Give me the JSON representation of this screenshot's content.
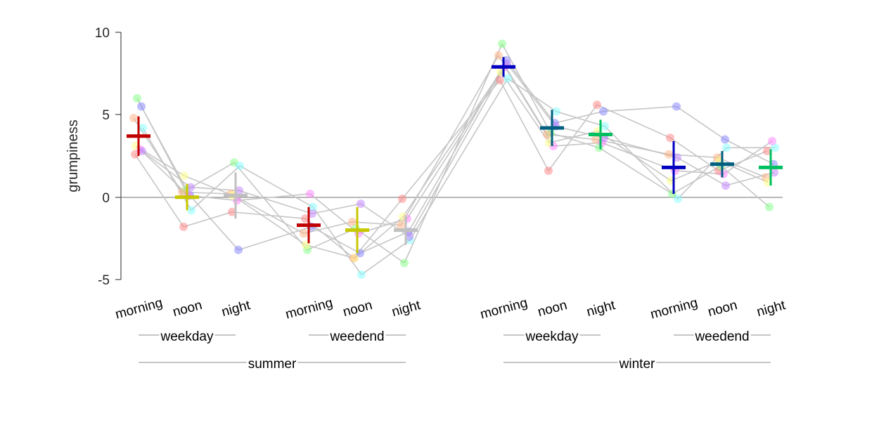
{
  "chart_data": {
    "type": "scatter",
    "ylabel": "grumpiness",
    "ylim": [
      -5,
      10
    ],
    "yticks": [
      -5,
      0,
      5,
      10
    ],
    "zero_line": true,
    "categories": [
      "morning",
      "noon",
      "night",
      "morning",
      "noon",
      "night",
      "morning",
      "noon",
      "night",
      "morning",
      "noon",
      "night"
    ],
    "groups": [
      {
        "label": "weekday",
        "span": [
          0,
          2
        ]
      },
      {
        "label": "weedend",
        "span": [
          3,
          5
        ]
      },
      {
        "label": "weekday",
        "span": [
          6,
          8
        ]
      },
      {
        "label": "weedend",
        "span": [
          9,
          11
        ]
      }
    ],
    "supergroups": [
      {
        "label": "summer",
        "span": [
          0,
          5
        ]
      },
      {
        "label": "winter",
        "span": [
          6,
          11
        ]
      }
    ],
    "category_colors": [
      "#c00000",
      "#c8c800",
      "#c0c0c0",
      "#c00000",
      "#c8c800",
      "#c0c0c0",
      "#0000c0",
      "#005f80",
      "#00c060",
      "#0000c0",
      "#005f80",
      "#00c060"
    ],
    "means": [
      3.7,
      0.0,
      0.1,
      -1.7,
      -2.0,
      -2.0,
      7.9,
      4.2,
      3.8,
      1.8,
      2.0,
      1.8
    ],
    "errors": [
      1.2,
      0.8,
      1.4,
      1.1,
      1.4,
      0.9,
      0.6,
      1.1,
      0.9,
      1.6,
      0.8,
      1.1
    ],
    "subjects": [
      {
        "color": "#ff8080",
        "values": [
          2.6,
          -1.8,
          -0.9,
          -1.3,
          -3.7,
          -0.1,
          7.1,
          1.6,
          5.6,
          3.6,
          1.6,
          2.8
        ]
      },
      {
        "color": "#8080ff",
        "values": [
          5.5,
          0.1,
          -3.2,
          -1.8,
          -3.4,
          -2.1,
          8.3,
          4.5,
          5.2,
          5.5,
          3.5,
          2.0
        ]
      },
      {
        "color": "#80ff80",
        "values": [
          6.0,
          0.4,
          2.1,
          -3.2,
          -1.9,
          -4.0,
          9.3,
          3.9,
          3.0,
          0.2,
          1.9,
          -0.6
        ]
      },
      {
        "color": "#80ffff",
        "values": [
          4.2,
          -0.8,
          1.9,
          -0.6,
          -4.7,
          -2.6,
          7.2,
          5.2,
          4.3,
          -0.1,
          3.0,
          3.0
        ]
      },
      {
        "color": "#ffb080",
        "values": [
          4.8,
          0.3,
          0.2,
          -2.2,
          -1.5,
          -1.7,
          8.6,
          3.8,
          3.5,
          2.6,
          2.4,
          1.2
        ]
      },
      {
        "color": "#ff80ff",
        "values": [
          2.9,
          0.1,
          -0.2,
          0.2,
          -2.2,
          -1.3,
          7.9,
          3.1,
          3.3,
          1.6,
          1.4,
          3.4
        ]
      },
      {
        "color": "#c080ff",
        "values": [
          2.8,
          0.6,
          0.4,
          -1.0,
          -0.4,
          -2.4,
          8.1,
          4.3,
          3.6,
          2.4,
          0.7,
          1.5
        ]
      },
      {
        "color": "#ffff80",
        "values": [
          3.1,
          1.3,
          0.1,
          -2.9,
          -3.7,
          -1.2,
          7.6,
          3.3,
          4.0,
          1.0,
          2.2,
          0.9
        ]
      }
    ]
  }
}
